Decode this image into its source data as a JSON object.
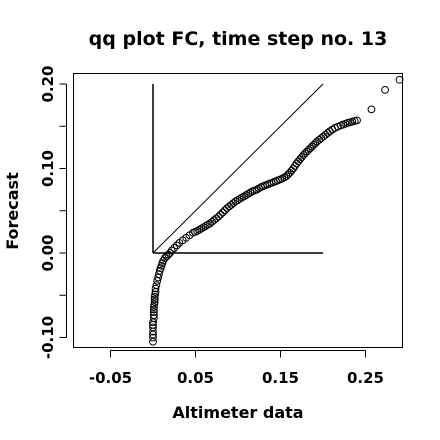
{
  "chart_data": {
    "type": "scatter",
    "title": "qq plot FC, time step no. 13",
    "xlabel": "Altimeter data",
    "ylabel": "Forecast",
    "xlim": [
      -0.1,
      0.29
    ],
    "ylim": [
      -0.11,
      0.21
    ],
    "xticks": [
      -0.05,
      0.05,
      0.15,
      0.25
    ],
    "xtick_labels": [
      "-0.05",
      "0.05",
      "0.15",
      "0.25"
    ],
    "yticks": [
      -0.1,
      0.0,
      0.1,
      0.2
    ],
    "ytick_labels": [
      "-0.10",
      "0.00",
      "0.10",
      "0.20"
    ],
    "grid": false,
    "reference_lines": [
      {
        "kind": "identity",
        "x": [
          0,
          0.2
        ],
        "y": [
          0,
          0.2
        ]
      },
      {
        "kind": "vertical",
        "x": [
          0,
          0
        ],
        "y": [
          0,
          0.2
        ]
      },
      {
        "kind": "horizontal",
        "x": [
          0,
          0.2
        ],
        "y": [
          0,
          0
        ]
      }
    ],
    "points": [
      [
        0.0,
        -0.105
      ],
      [
        0.0,
        -0.1
      ],
      [
        0.0,
        -0.093
      ],
      [
        0.0,
        -0.088
      ],
      [
        0.0,
        -0.082
      ],
      [
        0.001,
        -0.077
      ],
      [
        0.001,
        -0.07
      ],
      [
        0.001,
        -0.064
      ],
      [
        0.002,
        -0.058
      ],
      [
        0.002,
        -0.052
      ],
      [
        0.003,
        -0.046
      ],
      [
        0.003,
        -0.042
      ],
      [
        0.004,
        -0.038
      ],
      [
        0.005,
        -0.033
      ],
      [
        0.006,
        -0.029
      ],
      [
        0.007,
        -0.025
      ],
      [
        0.008,
        -0.021
      ],
      [
        0.009,
        -0.018
      ],
      [
        0.01,
        -0.015
      ],
      [
        0.011,
        -0.012
      ],
      [
        0.012,
        -0.009
      ],
      [
        0.014,
        -0.006
      ],
      [
        0.016,
        -0.004
      ],
      [
        0.018,
        -0.002
      ],
      [
        0.02,
        0.0
      ],
      [
        0.022,
        0.003
      ],
      [
        0.025,
        0.006
      ],
      [
        0.028,
        0.009
      ],
      [
        0.031,
        0.012
      ],
      [
        0.035,
        0.015
      ],
      [
        0.039,
        0.018
      ],
      [
        0.043,
        0.021
      ],
      [
        0.047,
        0.024
      ],
      [
        0.052,
        0.026
      ],
      [
        0.057,
        0.029
      ],
      [
        0.062,
        0.032
      ],
      [
        0.067,
        0.035
      ],
      [
        0.072,
        0.039
      ],
      [
        0.077,
        0.043
      ],
      [
        0.082,
        0.048
      ],
      [
        0.087,
        0.053
      ],
      [
        0.092,
        0.057
      ],
      [
        0.097,
        0.061
      ],
      [
        0.102,
        0.064
      ],
      [
        0.107,
        0.067
      ],
      [
        0.112,
        0.07
      ],
      [
        0.117,
        0.073
      ],
      [
        0.122,
        0.075
      ],
      [
        0.127,
        0.078
      ],
      [
        0.132,
        0.08
      ],
      [
        0.137,
        0.082
      ],
      [
        0.142,
        0.084
      ],
      [
        0.147,
        0.086
      ],
      [
        0.152,
        0.088
      ],
      [
        0.157,
        0.091
      ],
      [
        0.161,
        0.095
      ],
      [
        0.165,
        0.1
      ],
      [
        0.169,
        0.106
      ],
      [
        0.173,
        0.111
      ],
      [
        0.177,
        0.116
      ],
      [
        0.181,
        0.12
      ],
      [
        0.185,
        0.124
      ],
      [
        0.189,
        0.128
      ],
      [
        0.193,
        0.132
      ],
      [
        0.198,
        0.136
      ],
      [
        0.203,
        0.14
      ],
      [
        0.208,
        0.144
      ],
      [
        0.214,
        0.148
      ],
      [
        0.221,
        0.151
      ],
      [
        0.229,
        0.154
      ],
      [
        0.24,
        0.157
      ],
      [
        0.257,
        0.17
      ],
      [
        0.273,
        0.193
      ],
      [
        0.29,
        0.205
      ]
    ]
  }
}
